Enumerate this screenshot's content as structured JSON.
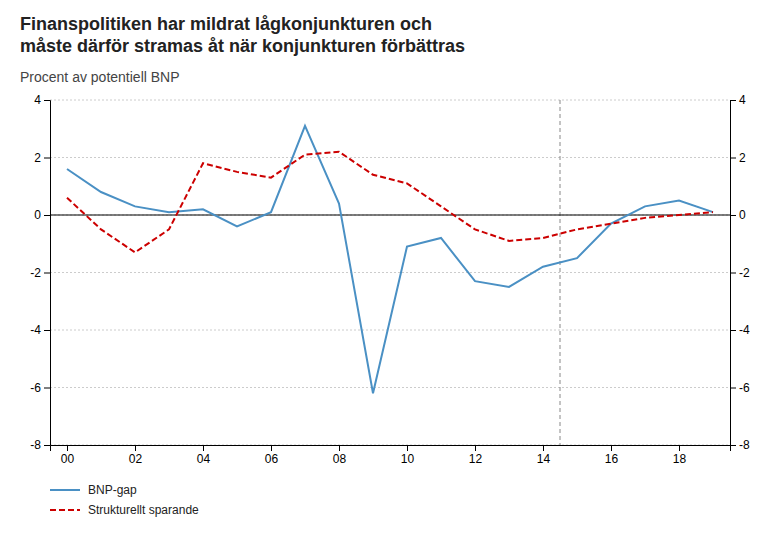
{
  "chart_data": {
    "type": "line",
    "title": "Finanspolitiken har mildrat lågkonjunkturen och\nmåste därför stramas åt när konjunkturen förbättras",
    "subtitle": "Procent av potentiell BNP",
    "x": [
      2000,
      2001,
      2002,
      2003,
      2004,
      2005,
      2006,
      2007,
      2008,
      2009,
      2010,
      2011,
      2012,
      2013,
      2014,
      2015,
      2016,
      2017,
      2018,
      2019
    ],
    "series": [
      {
        "name": "BNP-gap",
        "color": "#4a90c4",
        "line_style": "solid",
        "values": [
          1.6,
          0.8,
          0.3,
          0.1,
          0.2,
          -0.4,
          0.1,
          3.1,
          0.4,
          -6.2,
          -1.1,
          -0.8,
          -2.3,
          -2.5,
          -1.8,
          -1.5,
          -0.3,
          0.3,
          0.5,
          0.1
        ]
      },
      {
        "name": "Strukturellt sparande",
        "color": "#cc0000",
        "line_style": "dashed",
        "values": [
          0.6,
          -0.5,
          -1.3,
          -0.5,
          1.8,
          1.5,
          1.3,
          2.1,
          2.2,
          1.4,
          1.1,
          0.3,
          -0.5,
          -0.9,
          -0.8,
          -0.5,
          -0.3,
          -0.1,
          0.0,
          0.1
        ]
      }
    ],
    "xlim": [
      1999.5,
      2019.5
    ],
    "xticks": [
      {
        "value": 2000,
        "label": "00"
      },
      {
        "value": 2002,
        "label": "02"
      },
      {
        "value": 2004,
        "label": "04"
      },
      {
        "value": 2006,
        "label": "06"
      },
      {
        "value": 2008,
        "label": "08"
      },
      {
        "value": 2010,
        "label": "10"
      },
      {
        "value": 2012,
        "label": "12"
      },
      {
        "value": 2014,
        "label": "14"
      },
      {
        "value": 2016,
        "label": "16"
      },
      {
        "value": 2018,
        "label": "18"
      }
    ],
    "ylim": [
      -8,
      4
    ],
    "yticks": [
      -8,
      -6,
      -4,
      -2,
      0,
      2,
      4
    ],
    "y2lim": [
      -8,
      4
    ],
    "y2ticks": [
      -8,
      -6,
      -4,
      -2,
      0,
      2,
      4
    ],
    "vline_x": 2014.5,
    "hline_y": 0,
    "grid": true,
    "legend": "bottom"
  }
}
